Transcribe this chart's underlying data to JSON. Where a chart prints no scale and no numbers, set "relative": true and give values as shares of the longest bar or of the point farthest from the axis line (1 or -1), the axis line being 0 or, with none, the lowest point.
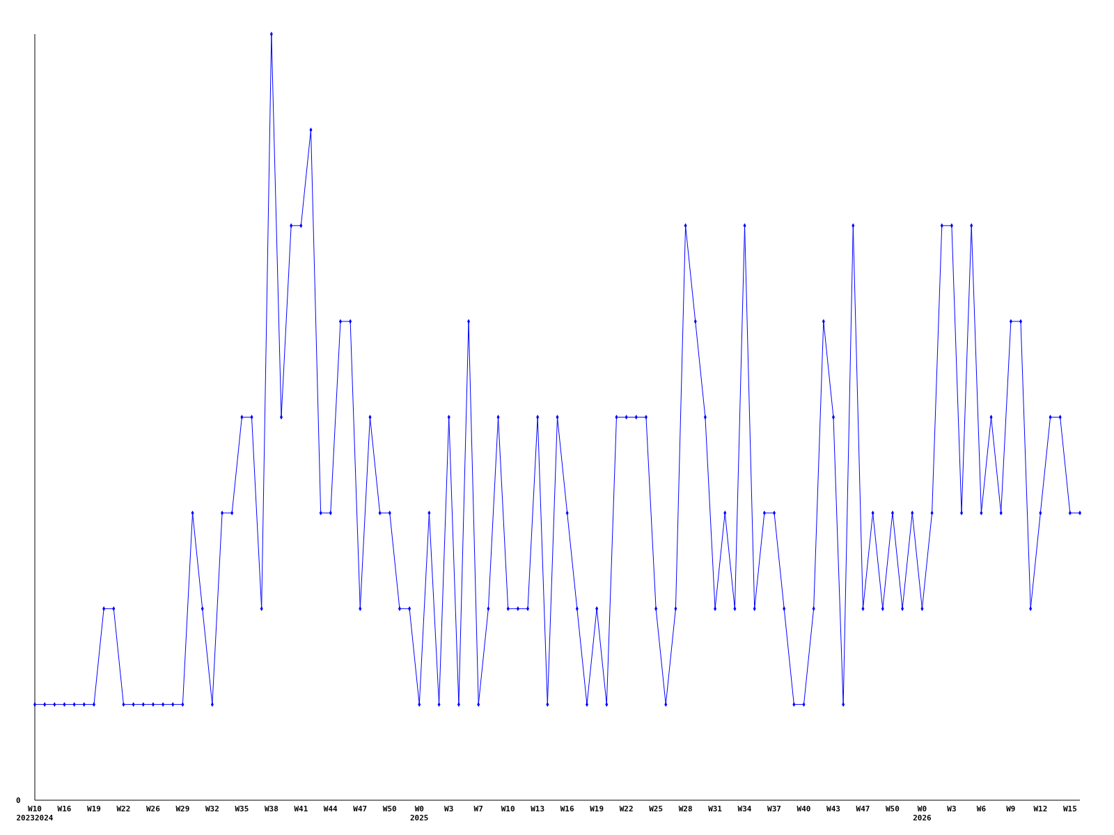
{
  "chart_data": {
    "type": "line",
    "relative": true,
    "marker": "diamond",
    "annotations": [
      "0"
    ],
    "categories": [
      "W10\n20232024",
      null,
      null,
      "W16",
      null,
      null,
      "W19",
      null,
      null,
      "W22",
      null,
      null,
      "W26",
      null,
      null,
      "W29",
      null,
      null,
      "W32",
      null,
      null,
      "W35",
      null,
      null,
      "W38",
      null,
      null,
      "W41",
      null,
      null,
      "W44",
      null,
      null,
      "W47",
      null,
      null,
      "W50",
      null,
      null,
      "W0\n2025",
      null,
      null,
      "W3",
      null,
      null,
      "W7",
      null,
      null,
      "W10",
      null,
      null,
      "W13",
      null,
      null,
      "W16",
      null,
      null,
      "W19",
      null,
      null,
      "W22",
      null,
      null,
      "W25",
      null,
      null,
      "W28",
      null,
      null,
      "W31",
      null,
      null,
      "W34",
      null,
      null,
      "W37",
      null,
      null,
      "W40",
      null,
      null,
      "W43",
      null,
      null,
      "W47",
      null,
      null,
      "W50",
      null,
      null,
      "W0\n2026",
      null,
      null,
      "W3",
      null,
      null,
      "W6",
      null,
      null,
      "W9",
      null,
      null,
      "W12",
      null,
      null,
      "W15",
      null
    ],
    "series": [
      {
        "color": "#0000ff",
        "values": [
          0.125,
          0.125,
          0.125,
          0.125,
          0.125,
          0.125,
          0.125,
          0.25,
          0.25,
          0.125,
          0.125,
          0.125,
          0.125,
          0.125,
          0.125,
          0.125,
          0.375,
          0.25,
          0.125,
          0.375,
          0.375,
          0.5,
          0.5,
          0.25,
          1,
          0.5,
          0.75,
          0.75,
          0.875,
          0.375,
          0.375,
          0.625,
          0.625,
          0.25,
          0.5,
          0.375,
          0.375,
          0.25,
          0.25,
          0.125,
          0.375,
          0.125,
          0.5,
          0.125,
          0.625,
          0.125,
          0.25,
          0.5,
          0.25,
          0.25,
          0.25,
          0.5,
          0.125,
          0.5,
          0.375,
          0.25,
          0.125,
          0.25,
          0.125,
          0.5,
          0.5,
          0.5,
          0.5,
          0.25,
          0.125,
          0.25,
          0.75,
          0.625,
          0.5,
          0.25,
          0.375,
          0.25,
          0.75,
          0.25,
          0.375,
          0.375,
          0.25,
          0.125,
          0.125,
          0.25,
          0.625,
          0.5,
          0.125,
          0.75,
          0.25,
          0.375,
          0.25,
          0.375,
          0.25,
          0.375,
          0.25,
          0.375,
          0.75,
          0.75,
          0.375,
          0.75,
          0.375,
          0.5,
          0.375,
          0.625,
          0.625,
          0.25,
          0.375,
          0.5,
          0.5,
          0.375,
          0.375
        ]
      }
    ]
  }
}
